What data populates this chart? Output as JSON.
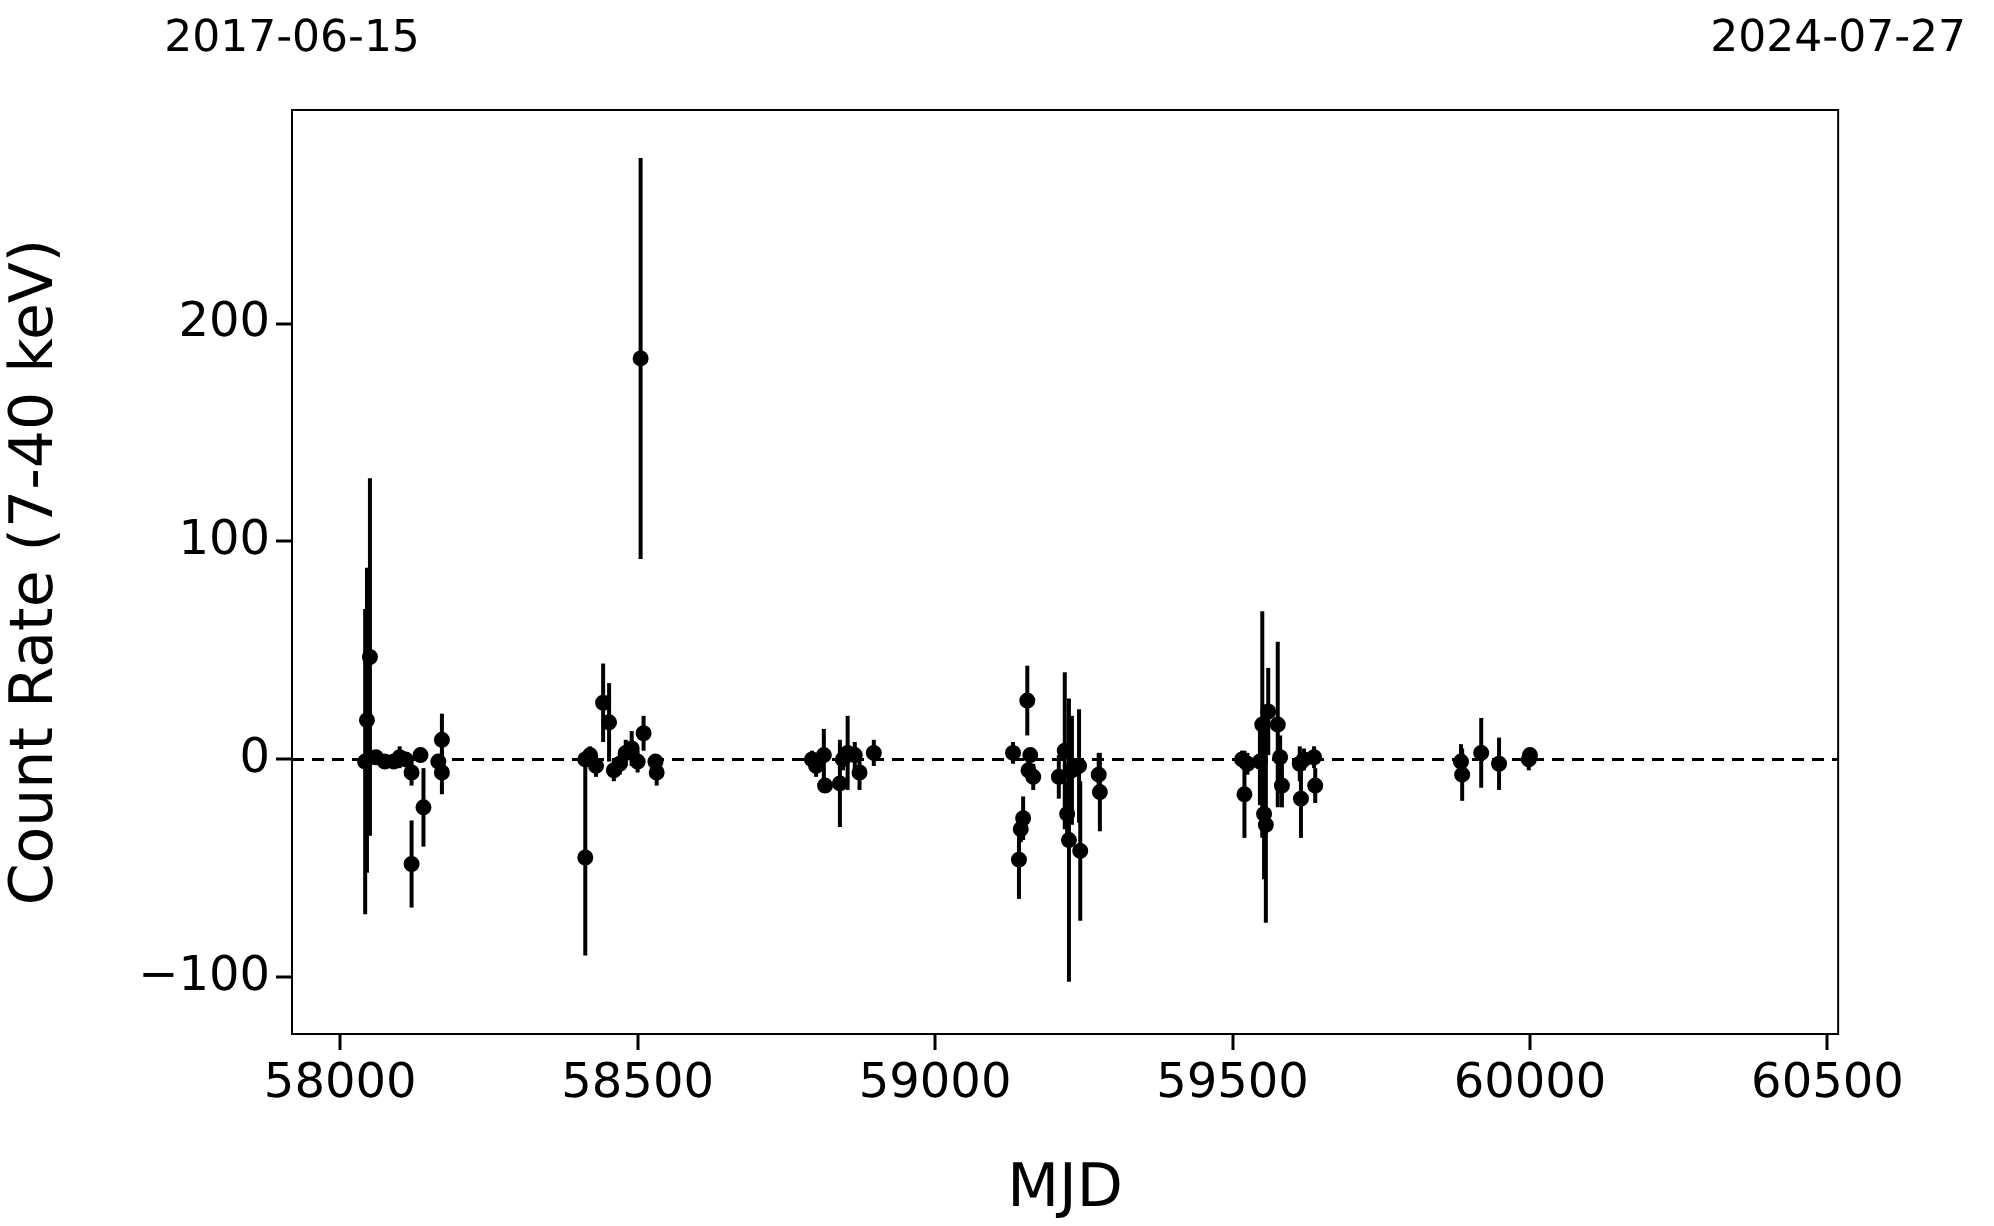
{
  "chart_data": {
    "type": "scatter",
    "xlabel": "MJD",
    "ylabel": "Count Rate (7-40 keV)",
    "xlim": [
      57919,
      60518
    ],
    "xticks": [
      58000,
      58500,
      59000,
      59500,
      60000,
      60500
    ],
    "ylim": [
      -126,
      298
    ],
    "yticks": [
      {
        "value": -100,
        "label": "−100"
      },
      0,
      100,
      200
    ],
    "x2lim": [
      "2017-06-15",
      "2024-07-27"
    ],
    "x2ticks": [
      "2017-06-15",
      "2024-07-27"
    ],
    "grid": false,
    "legend": false,
    "marker": "circle",
    "ref_lines": [
      {
        "axis": "y",
        "value": 0,
        "color": "#000000",
        "line_style": "dashed"
      }
    ],
    "series": [
      {
        "color": "#000000",
        "x": [
          58042,
          58045,
          58050,
          58060,
          58075,
          58090,
          58100,
          58110,
          58120,
          58120,
          58140,
          58135,
          58171,
          58171,
          58165,
          58505,
          58412,
          58412,
          58442,
          58452,
          58430,
          58420,
          58460,
          58470,
          58480,
          58490,
          58500,
          58510,
          58532,
          58530,
          58793,
          58800,
          58813,
          58815,
          58840,
          58845,
          58853,
          58865,
          58873,
          58897,
          59131,
          59141,
          59144,
          59148,
          59155,
          59157,
          59160,
          59165,
          59208,
          59218,
          59222,
          59225,
          59230,
          59242,
          59244,
          59275,
          59277,
          59516,
          59520,
          59525,
          59546,
          59550,
          59553,
          59556,
          59560,
          59576,
          59580,
          59583,
          59613,
          59615,
          59620,
          59637,
          59639,
          59884,
          59886,
          59918,
          59948,
          59998,
          60000
        ],
        "values": [
          -1,
          18,
          47,
          1,
          -1,
          -1,
          1,
          0,
          -6,
          -48,
          -22,
          2,
          9,
          -6,
          -1,
          184,
          -45,
          0,
          26,
          17,
          -3,
          2,
          -5,
          -2,
          3,
          5,
          -1,
          12,
          -6,
          -1,
          0,
          -3,
          2,
          -12,
          -11,
          0,
          3,
          2,
          -6,
          3,
          3,
          -46,
          -32,
          -27,
          27,
          -5,
          2,
          -8,
          -8,
          4,
          -25,
          -37,
          -5,
          -3,
          -42,
          -7,
          -15,
          0,
          -16,
          -2,
          -1,
          16,
          -25,
          -30,
          22,
          16,
          1,
          -12,
          -2,
          -18,
          0,
          1,
          -12,
          -1,
          -7,
          3,
          -2,
          0,
          2
        ],
        "errors": [
          70,
          70,
          82,
          3,
          2,
          3,
          5,
          3,
          6,
          20,
          18,
          3,
          12,
          10,
          3,
          92,
          45,
          3,
          18,
          18,
          5,
          4,
          5,
          5,
          6,
          8,
          5,
          8,
          6,
          3,
          4,
          5,
          12,
          3,
          20,
          5,
          17,
          6,
          8,
          6,
          5,
          18,
          6,
          10,
          16,
          5,
          3,
          6,
          10,
          36,
          15,
          65,
          25,
          26,
          32,
          10,
          18,
          4,
          20,
          5,
          20,
          52,
          30,
          45,
          20,
          38,
          10,
          10,
          8,
          18,
          5,
          5,
          8,
          8,
          12,
          16,
          12,
          5,
          3
        ]
      }
    ]
  }
}
